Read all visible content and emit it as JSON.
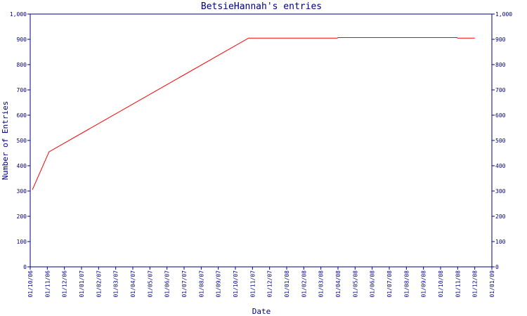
{
  "chart_data": {
    "type": "line",
    "title": "BetsieHannah's entries",
    "xlabel": "Date",
    "ylabel": "Number of Entries",
    "ylim": [
      0,
      1000
    ],
    "y_ticks": [
      "0",
      "100",
      "200",
      "300",
      "400",
      "500",
      "600",
      "700",
      "800",
      "900",
      "1,000"
    ],
    "x_ticks": [
      "01/10/06",
      "01/11/06",
      "01/12/06",
      "01/01/07",
      "01/02/07",
      "01/03/07",
      "01/04/07",
      "01/05/07",
      "01/06/07",
      "01/07/07",
      "01/08/07",
      "01/09/07",
      "01/10/07",
      "01/11/07",
      "01/12/07",
      "01/01/08",
      "01/02/08",
      "01/03/08",
      "01/04/08",
      "01/05/08",
      "01/06/08",
      "01/07/08",
      "01/08/08",
      "01/09/08",
      "01/10/08",
      "01/11/08",
      "01/12/08",
      "01/01/09"
    ],
    "grid": false,
    "line_color": "#ff0000",
    "axis_color": "#000080",
    "series": [
      {
        "x": [
          "2006-10-05",
          "2006-11-04",
          "2007-10-25",
          "2007-11-01",
          "2008-03-31",
          "2008-04-01",
          "2008-10-31",
          "2008-11-01",
          "2008-12-01"
        ],
        "values": [
          305,
          455,
          905,
          905,
          905,
          907,
          907,
          905,
          905
        ]
      }
    ]
  }
}
